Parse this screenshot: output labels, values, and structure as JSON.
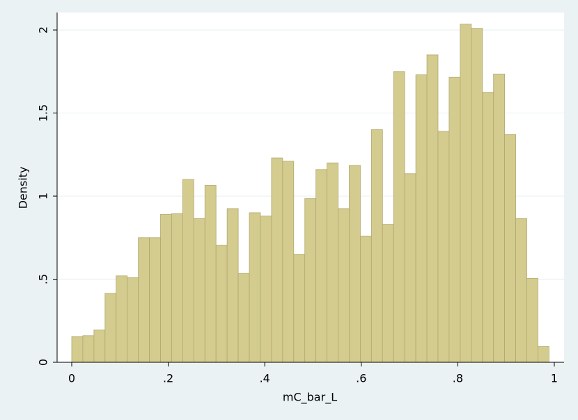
{
  "chart_data": {
    "type": "histogram",
    "x_label": "mC_bar_L",
    "y_label": "Density",
    "bins": [
      0,
      0.023,
      0.046,
      0.069,
      0.092,
      0.115,
      0.138,
      0.161,
      0.184,
      0.207,
      0.23,
      0.253,
      0.276,
      0.299,
      0.322,
      0.345,
      0.368,
      0.391,
      0.414,
      0.437,
      0.46,
      0.483,
      0.506,
      0.529,
      0.552,
      0.575,
      0.598,
      0.621,
      0.644,
      0.667,
      0.69,
      0.713,
      0.736,
      0.759,
      0.782,
      0.805,
      0.828,
      0.851,
      0.874,
      0.897,
      0.92,
      0.943,
      0.966,
      0.989
    ],
    "values": [
      0.155,
      0.16,
      0.195,
      0.415,
      0.52,
      0.51,
      0.75,
      0.75,
      0.89,
      0.895,
      1.1,
      0.865,
      1.065,
      0.705,
      0.925,
      0.535,
      0.9,
      0.88,
      1.23,
      1.21,
      0.65,
      0.985,
      1.16,
      1.2,
      0.925,
      1.185,
      0.76,
      1.4,
      0.83,
      1.75,
      1.135,
      1.73,
      1.85,
      1.39,
      1.715,
      2.035,
      2.01,
      1.625,
      1.735,
      1.37,
      0.865,
      0.505,
      0.095
    ],
    "color": "#d4cb8e",
    "xlim": [
      -0.0303,
      1.0202
    ],
    "ylim": [
      0,
      2.105
    ],
    "xticks": [
      0,
      {
        "value": 0.2,
        "label": ".2"
      },
      {
        "value": 0.4,
        "label": ".4"
      },
      {
        "value": 0.6,
        "label": ".6"
      },
      {
        "value": 0.8,
        "label": ".8"
      },
      1
    ],
    "yticks": [
      0,
      {
        "value": 0.5,
        "label": ".5"
      },
      1,
      1.5,
      2
    ],
    "grid": true
  }
}
